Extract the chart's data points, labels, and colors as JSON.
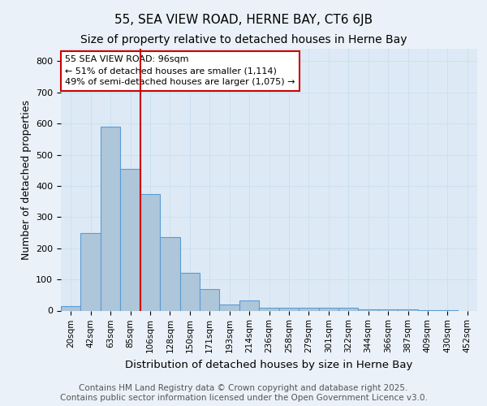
{
  "title1": "55, SEA VIEW ROAD, HERNE BAY, CT6 6JB",
  "title2": "Size of property relative to detached houses in Herne Bay",
  "xlabel": "Distribution of detached houses by size in Herne Bay",
  "ylabel": "Number of detached properties",
  "bin_labels": [
    "20sqm",
    "42sqm",
    "63sqm",
    "85sqm",
    "106sqm",
    "128sqm",
    "150sqm",
    "171sqm",
    "193sqm",
    "214sqm",
    "236sqm",
    "258sqm",
    "279sqm",
    "301sqm",
    "322sqm",
    "344sqm",
    "366sqm",
    "387sqm",
    "409sqm",
    "430sqm",
    "452sqm"
  ],
  "bar_heights": [
    15,
    250,
    590,
    455,
    375,
    235,
    120,
    68,
    20,
    32,
    10,
    10,
    10,
    8,
    8,
    5,
    4,
    3,
    2,
    2,
    0
  ],
  "bar_color": "#aec6d9",
  "bar_edge_color": "#5b9bd5",
  "annotation_text": "55 SEA VIEW ROAD: 96sqm\n← 51% of detached houses are smaller (1,114)\n49% of semi-detached houses are larger (1,075) →",
  "annotation_box_color": "#ffffff",
  "annotation_box_edge_color": "#cc0000",
  "vline_color": "#cc0000",
  "ylim": [
    0,
    840
  ],
  "yticks": [
    0,
    100,
    200,
    300,
    400,
    500,
    600,
    700,
    800
  ],
  "grid_color": "#cce0f0",
  "background_color": "#ddeaf5",
  "fig_background_color": "#eaf1f8",
  "footer_text": "Contains HM Land Registry data © Crown copyright and database right 2025.\nContains public sector information licensed under the Open Government Licence v3.0.",
  "title1_fontsize": 11,
  "title2_fontsize": 10,
  "xlabel_fontsize": 9.5,
  "ylabel_fontsize": 9,
  "footer_fontsize": 7.5,
  "annotation_fontsize": 8,
  "tick_fontsize": 7.5,
  "ytick_fontsize": 8
}
